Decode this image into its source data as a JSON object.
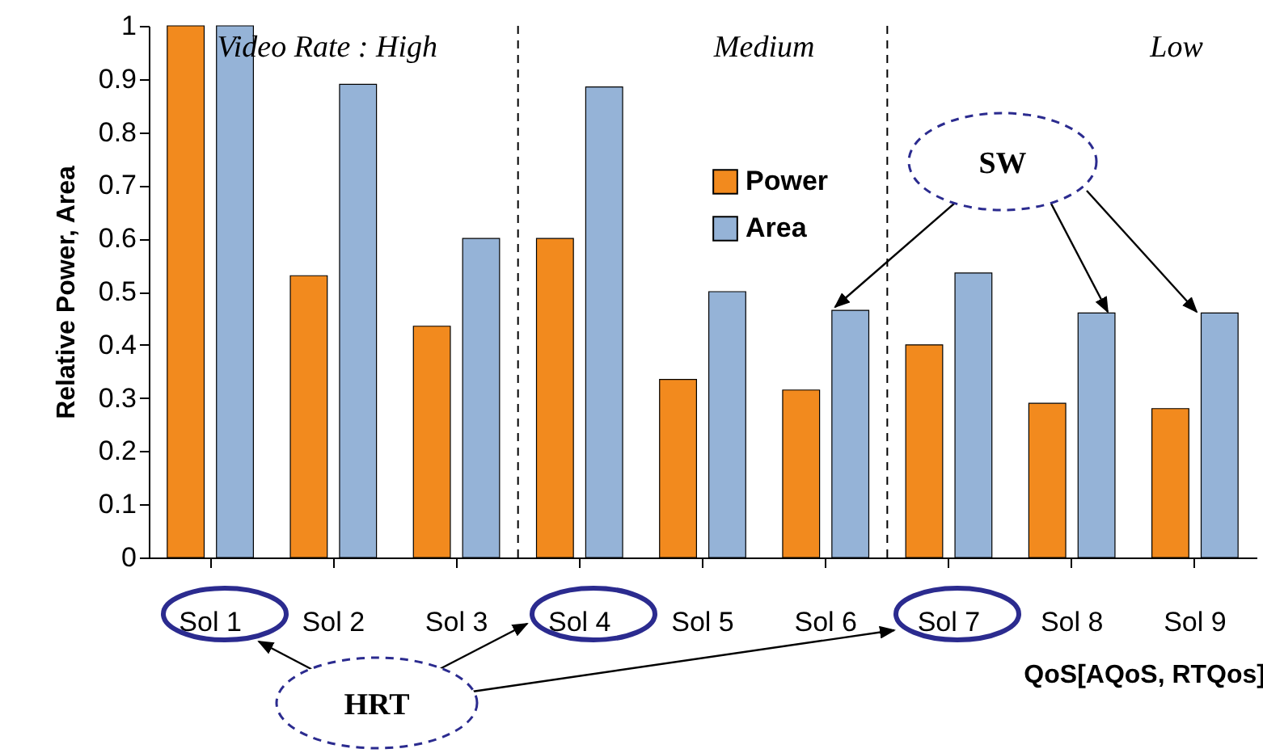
{
  "chart_data": {
    "type": "bar",
    "categories": [
      "Sol 1",
      "Sol 2",
      "Sol 3",
      "Sol 4",
      "Sol 5",
      "Sol 6",
      "Sol 7",
      "Sol 8",
      "Sol 9"
    ],
    "series": [
      {
        "name": "Power",
        "color": "#f28a1e",
        "values": [
          1.0,
          0.53,
          0.435,
          0.6,
          0.335,
          0.315,
          0.4,
          0.29,
          0.28
        ]
      },
      {
        "name": "Area",
        "color": "#95b3d7",
        "values": [
          1.0,
          0.89,
          0.6,
          0.885,
          0.5,
          0.465,
          0.535,
          0.46,
          0.46
        ]
      }
    ],
    "xlabel": "QoS[AQoS, RTQos]",
    "ylabel": "Relative Power, Area",
    "ylim": [
      0,
      1
    ],
    "yticks": [
      0,
      0.1,
      0.2,
      0.3,
      0.4,
      0.5,
      0.6,
      0.7,
      0.8,
      0.9,
      1
    ],
    "grid": false,
    "legend": "top",
    "annotations": [
      "Video Rate : High",
      "Medium",
      "Low",
      {
        "text": "SW",
        "x": "Sol 6",
        "y": 0.465
      },
      "HRT"
    ]
  }
}
